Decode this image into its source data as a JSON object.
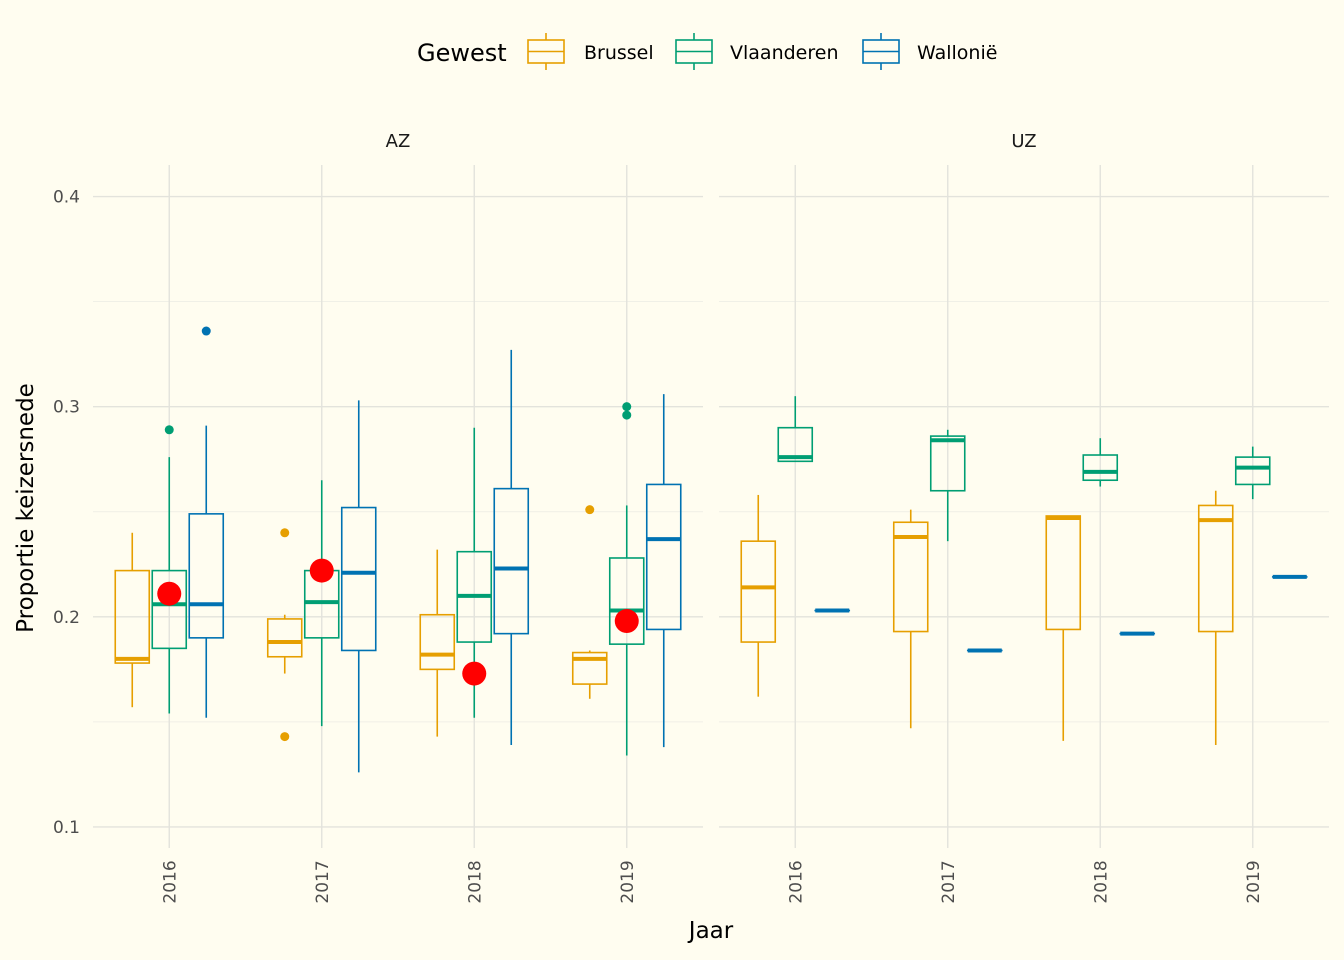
{
  "chart_data": {
    "type": "boxplot",
    "xlabel": "Jaar",
    "ylabel": "Proportie keizersnede",
    "legend": {
      "title": "Gewest",
      "position": "top",
      "entries": [
        {
          "name": "Brussel",
          "color": "#E69F00"
        },
        {
          "name": "Vlaanderen",
          "color": "#009E73"
        },
        {
          "name": "Wallonië",
          "color": "#0072B2"
        }
      ]
    },
    "y_ticks": [
      {
        "value": 0.1,
        "label": "0.1"
      },
      {
        "value": 0.2,
        "label": "0.2"
      },
      {
        "value": 0.3,
        "label": "0.3"
      },
      {
        "value": 0.4,
        "label": "0.4"
      }
    ],
    "ylim": [
      0.09,
      0.415
    ],
    "grid": true,
    "highlight_color": "#FF0000",
    "panels": [
      {
        "label": "AZ",
        "years": [
          {
            "label": "2016",
            "boxes": [
              {
                "series": "Brussel",
                "lower": 0.157,
                "q1": 0.178,
                "median": 0.18,
                "q3": 0.222,
                "upper": 0.24,
                "outliers": []
              },
              {
                "series": "Vlaanderen",
                "lower": 0.154,
                "q1": 0.185,
                "median": 0.206,
                "q3": 0.222,
                "upper": 0.276,
                "outliers": [
                  0.289
                ]
              },
              {
                "series": "Wallonië",
                "lower": 0.152,
                "q1": 0.19,
                "median": 0.206,
                "q3": 0.249,
                "upper": 0.291,
                "outliers": [
                  0.336
                ]
              }
            ],
            "highlight": 0.211
          },
          {
            "label": "2017",
            "boxes": [
              {
                "series": "Brussel",
                "lower": 0.173,
                "q1": 0.181,
                "median": 0.188,
                "q3": 0.199,
                "upper": 0.201,
                "outliers": [
                  0.24,
                  0.143
                ]
              },
              {
                "series": "Vlaanderen",
                "lower": 0.148,
                "q1": 0.19,
                "median": 0.207,
                "q3": 0.222,
                "upper": 0.265,
                "outliers": []
              },
              {
                "series": "Wallonië",
                "lower": 0.126,
                "q1": 0.184,
                "median": 0.221,
                "q3": 0.252,
                "upper": 0.303,
                "outliers": []
              }
            ],
            "highlight": 0.222
          },
          {
            "label": "2018",
            "boxes": [
              {
                "series": "Brussel",
                "lower": 0.143,
                "q1": 0.175,
                "median": 0.182,
                "q3": 0.201,
                "upper": 0.232,
                "outliers": []
              },
              {
                "series": "Vlaanderen",
                "lower": 0.152,
                "q1": 0.188,
                "median": 0.21,
                "q3": 0.231,
                "upper": 0.29,
                "outliers": []
              },
              {
                "series": "Wallonië",
                "lower": 0.139,
                "q1": 0.192,
                "median": 0.223,
                "q3": 0.261,
                "upper": 0.327,
                "outliers": []
              }
            ],
            "highlight": 0.173
          },
          {
            "label": "2019",
            "boxes": [
              {
                "series": "Brussel",
                "lower": 0.161,
                "q1": 0.168,
                "median": 0.18,
                "q3": 0.183,
                "upper": 0.184,
                "outliers": [
                  0.251
                ]
              },
              {
                "series": "Vlaanderen",
                "lower": 0.134,
                "q1": 0.187,
                "median": 0.203,
                "q3": 0.228,
                "upper": 0.253,
                "outliers": [
                  0.3,
                  0.296
                ]
              },
              {
                "series": "Wallonië",
                "lower": 0.138,
                "q1": 0.194,
                "median": 0.237,
                "q3": 0.263,
                "upper": 0.306,
                "outliers": []
              }
            ],
            "highlight": 0.198
          }
        ]
      },
      {
        "label": "UZ",
        "years": [
          {
            "label": "2016",
            "boxes": [
              {
                "series": "Brussel",
                "lower": 0.162,
                "q1": 0.188,
                "median": 0.214,
                "q3": 0.236,
                "upper": 0.258,
                "outliers": []
              },
              {
                "series": "Vlaanderen",
                "lower": 0.274,
                "q1": 0.274,
                "median": 0.276,
                "q3": 0.29,
                "upper": 0.305,
                "outliers": []
              },
              {
                "series": "Wallonië",
                "lower": 0.203,
                "q1": 0.203,
                "median": 0.203,
                "q3": 0.203,
                "upper": 0.203,
                "outliers": []
              }
            ]
          },
          {
            "label": "2017",
            "boxes": [
              {
                "series": "Brussel",
                "lower": 0.147,
                "q1": 0.193,
                "median": 0.238,
                "q3": 0.245,
                "upper": 0.251,
                "outliers": []
              },
              {
                "series": "Vlaanderen",
                "lower": 0.236,
                "q1": 0.26,
                "median": 0.284,
                "q3": 0.286,
                "upper": 0.289,
                "outliers": []
              },
              {
                "series": "Wallonië",
                "lower": 0.184,
                "q1": 0.184,
                "median": 0.184,
                "q3": 0.184,
                "upper": 0.184,
                "outliers": []
              }
            ]
          },
          {
            "label": "2018",
            "boxes": [
              {
                "series": "Brussel",
                "lower": 0.141,
                "q1": 0.194,
                "median": 0.247,
                "q3": 0.248,
                "upper": 0.248,
                "outliers": []
              },
              {
                "series": "Vlaanderen",
                "lower": 0.262,
                "q1": 0.265,
                "median": 0.269,
                "q3": 0.277,
                "upper": 0.285,
                "outliers": []
              },
              {
                "series": "Wallonië",
                "lower": 0.192,
                "q1": 0.192,
                "median": 0.192,
                "q3": 0.192,
                "upper": 0.192,
                "outliers": []
              }
            ]
          },
          {
            "label": "2019",
            "boxes": [
              {
                "series": "Brussel",
                "lower": 0.139,
                "q1": 0.193,
                "median": 0.246,
                "q3": 0.253,
                "upper": 0.26,
                "outliers": []
              },
              {
                "series": "Vlaanderen",
                "lower": 0.256,
                "q1": 0.263,
                "median": 0.271,
                "q3": 0.276,
                "upper": 0.281,
                "outliers": []
              },
              {
                "series": "Wallonië",
                "lower": 0.219,
                "q1": 0.219,
                "median": 0.219,
                "q3": 0.219,
                "upper": 0.219,
                "outliers": []
              }
            ]
          }
        ]
      }
    ]
  }
}
